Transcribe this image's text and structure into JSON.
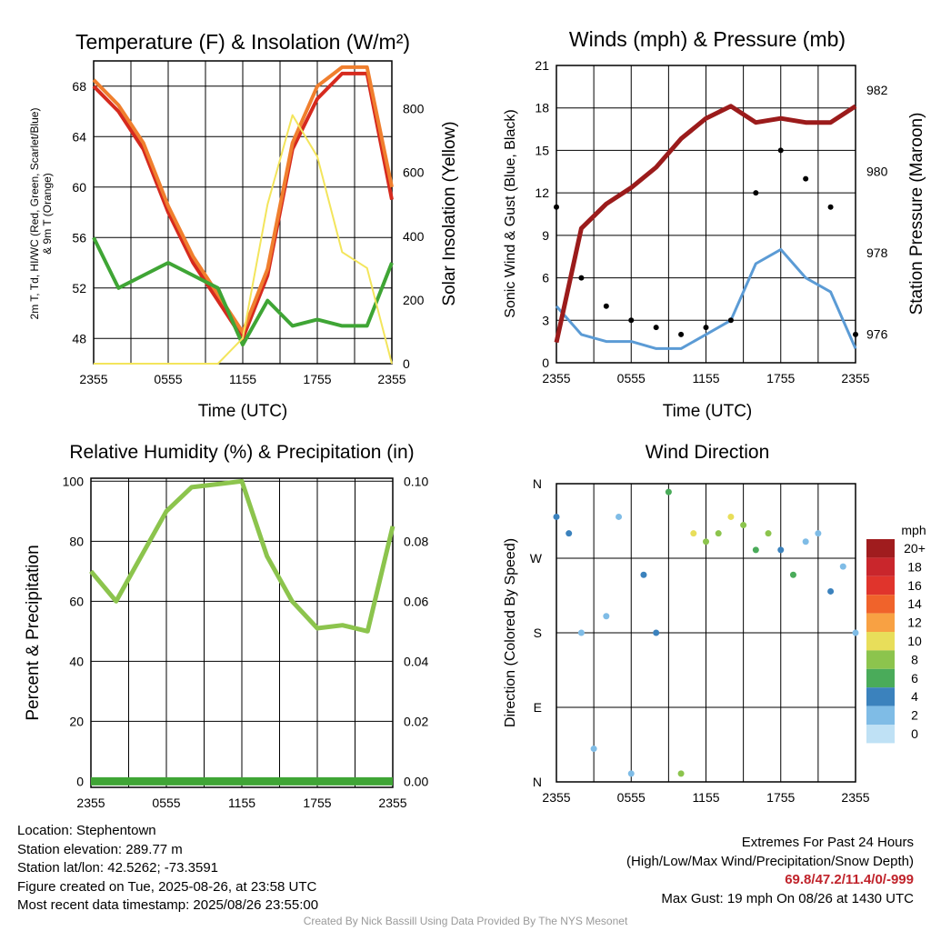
{
  "x_ticks": [
    "2355",
    "0555",
    "1155",
    "1755",
    "2355"
  ],
  "panels": {
    "temperature": {
      "title": "Temperature (F) & Insolation (W/m²)",
      "ylabel_left_1": "2m T, Td, HI/WC (Red, Green, Scarlet/Blue)",
      "ylabel_left_2": "& 9m T (Orange)",
      "ylabel_right": "Solar Insolation (Yellow)",
      "xlabel": "Time (UTC)"
    },
    "winds": {
      "title": "Winds (mph) & Pressure (mb)",
      "ylabel_left": "Sonic Wind & Gust (Blue, Black)",
      "ylabel_right": "Station Pressure (Maroon)",
      "xlabel": "Time (UTC)"
    },
    "humidity": {
      "title": "Relative Humidity (%) & Precipitation (in)",
      "ylabel_left": "Percent & Precipitation"
    },
    "direction": {
      "title": "Wind Direction",
      "ylabel_left": "Direction (Colored By Speed)",
      "legend_title": "mph",
      "legend_labels": [
        "20+",
        "18",
        "16",
        "14",
        "12",
        "10",
        "8",
        "6",
        "4",
        "2",
        "0"
      ],
      "legend_colors": [
        "#a01c1e",
        "#c9262c",
        "#e0342c",
        "#f0632b",
        "#f8a143",
        "#e8de5a",
        "#8cc44d",
        "#4aab5a",
        "#3b82bd",
        "#7fbce6",
        "#bfe1f5"
      ]
    }
  },
  "chart_data": [
    {
      "type": "line",
      "title": "Temperature (F) & Insolation (W/m²)",
      "xlabel": "Time (UTC)",
      "ylabel": "2m T, Td, HI/WC (Red, Green, Scarlet/Blue) & 9m T (Orange)",
      "y2label": "Solar Insolation (Yellow)",
      "x": [
        "2355",
        "0155",
        "0355",
        "0555",
        "0755",
        "0955",
        "1155",
        "1355",
        "1555",
        "1755",
        "1955",
        "2155",
        "2355"
      ],
      "ylim": [
        46,
        70
      ],
      "yticks": [
        48,
        52,
        56,
        60,
        64,
        68
      ],
      "y2lim": [
        0,
        950
      ],
      "y2ticks": [
        0,
        200,
        400,
        600,
        800
      ],
      "series": [
        {
          "color": "#d62a1e",
          "values": [
            68,
            66,
            63,
            58,
            54,
            51,
            48,
            53,
            63,
            67,
            69,
            69,
            59
          ]
        },
        {
          "color": "#f07f2e",
          "values": [
            68.5,
            66.5,
            63.5,
            58.5,
            54.5,
            51.5,
            48.5,
            53.5,
            63.5,
            68,
            69.5,
            69.5,
            60
          ]
        },
        {
          "color": "#3fa535",
          "values": [
            56,
            52,
            53,
            54,
            53,
            52,
            47.5,
            51,
            49,
            49.5,
            49,
            49,
            54
          ]
        },
        {
          "axis": "right",
          "color": "#f3e55c",
          "values": [
            0,
            0,
            0,
            0,
            0,
            0,
            80,
            500,
            780,
            650,
            350,
            300,
            0
          ]
        }
      ]
    },
    {
      "type": "line",
      "title": "Winds (mph) & Pressure (mb)",
      "xlabel": "Time (UTC)",
      "ylabel": "Sonic Wind & Gust (Blue, Black)",
      "y2label": "Station Pressure (Maroon)",
      "x": [
        "2355",
        "0155",
        "0355",
        "0555",
        "0755",
        "0955",
        "1155",
        "1355",
        "1555",
        "1755",
        "1955",
        "2155",
        "2355"
      ],
      "ylim": [
        0,
        21
      ],
      "yticks": [
        0,
        3,
        6,
        9,
        12,
        15,
        18,
        21
      ],
      "y2lim": [
        975.3,
        982.6
      ],
      "y2ticks": [
        976,
        978,
        980,
        982
      ],
      "series": [
        {
          "color": "#5b9bd5",
          "values": [
            4,
            2,
            1.5,
            1.5,
            1,
            1,
            2,
            3,
            7,
            8,
            6,
            5,
            1
          ]
        },
        {
          "color": "#000000",
          "marker": "dot",
          "values": [
            11,
            6,
            4,
            3,
            2.5,
            2,
            2.5,
            3,
            12,
            15,
            13,
            11,
            2
          ]
        },
        {
          "axis": "right",
          "color": "#9b1b1b",
          "values": [
            975.8,
            978.6,
            979.2,
            979.6,
            980.1,
            980.8,
            981.3,
            981.6,
            981.2,
            981.3,
            981.2,
            981.2,
            981.6
          ]
        }
      ]
    },
    {
      "type": "line",
      "title": "Relative Humidity (%) & Precipitation (in)",
      "ylabel": "Percent & Precipitation",
      "x": [
        "2355",
        "0155",
        "0355",
        "0555",
        "0755",
        "0955",
        "1155",
        "1355",
        "1555",
        "1755",
        "1955",
        "2155",
        "2355"
      ],
      "ylim": [
        -2,
        101
      ],
      "yticks": [
        0,
        20,
        40,
        60,
        80,
        100
      ],
      "y2lim": [
        -0.002,
        0.101
      ],
      "y2ticks": [
        "0.00",
        "0.02",
        "0.04",
        "0.06",
        "0.08",
        "0.10"
      ],
      "series": [
        {
          "color": "#8cc44d",
          "values": [
            70,
            60,
            75,
            90,
            98,
            99,
            100,
            75,
            60,
            51,
            52,
            50,
            85
          ]
        },
        {
          "axis": "right",
          "color": "#3fa535",
          "values": [
            0,
            0,
            0,
            0,
            0,
            0,
            0,
            0,
            0,
            0,
            0,
            0,
            0
          ]
        }
      ]
    },
    {
      "type": "scatter",
      "title": "Wind Direction",
      "ylabel": "Direction (Colored By Speed)",
      "x": [
        "2355",
        "0155",
        "0355",
        "0555",
        "0755",
        "0955",
        "1155",
        "1355",
        "1555",
        "1755",
        "1955",
        "2155",
        "2355"
      ],
      "yticks": [
        "N",
        "E",
        "S",
        "W",
        "N"
      ],
      "legend_title": "mph",
      "points_direction_deg": [
        320,
        300,
        180,
        40,
        200,
        320,
        10,
        250,
        180,
        350,
        10,
        300,
        290,
        300,
        320,
        310,
        280,
        300,
        280,
        250,
        290,
        300,
        230,
        260,
        180
      ],
      "points_speed_mph": [
        3,
        4,
        2,
        1,
        2,
        1,
        1,
        3,
        4,
        6,
        8,
        9,
        8,
        7,
        10,
        7,
        6,
        8,
        4,
        5,
        2,
        2,
        4,
        2,
        1
      ]
    }
  ],
  "footer": {
    "location": "Location: Stephentown",
    "elevation": "Station elevation: 289.77 m",
    "latlon": "Station lat/lon: 42.5262; -73.3591",
    "created": "Figure created on Tue, 2025-08-26, at 23:58 UTC",
    "recent": "Most recent data timestamp: 2025/08/26 23:55:00",
    "extremes_title": "Extremes For Past 24 Hours",
    "extremes_sub": "(High/Low/Max Wind/Precipitation/Snow Depth)",
    "extremes_values": "69.8/47.2/11.4/0/-999",
    "max_gust": "Max Gust: 19 mph On 08/26 at 1430 UTC",
    "credit": "Created By Nick Bassill Using Data Provided By The NYS Mesonet"
  }
}
